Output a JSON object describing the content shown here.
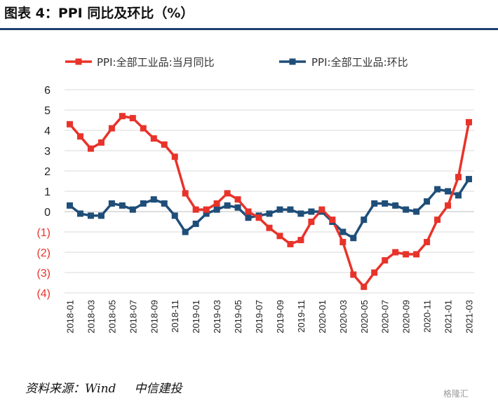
{
  "header": {
    "title": "图表 4：PPI 同比及环比（%）"
  },
  "footer": {
    "source_label": "资料来源：Wind",
    "source_org": "中信建投",
    "watermark": "格隆汇"
  },
  "colors": {
    "yoy": "#e8332a",
    "mom": "#1f4e79",
    "negative_tick": "#e8332a",
    "positive_tick": "#222222",
    "grid": "#d9d9d9"
  },
  "chart_data": {
    "type": "line",
    "title": "PPI 同比及环比（%）",
    "xlabel": "",
    "ylabel": "",
    "ylim": [
      -4,
      6
    ],
    "yticks": [
      {
        "value": 6,
        "label": "6"
      },
      {
        "value": 5,
        "label": "5"
      },
      {
        "value": 4,
        "label": "4"
      },
      {
        "value": 3,
        "label": "3"
      },
      {
        "value": 2,
        "label": "2"
      },
      {
        "value": 1,
        "label": "1"
      },
      {
        "value": 0,
        "label": "0"
      },
      {
        "value": -1,
        "label": "(1)"
      },
      {
        "value": -2,
        "label": "(2)"
      },
      {
        "value": -3,
        "label": "(3)"
      },
      {
        "value": -4,
        "label": "(4)"
      }
    ],
    "x": [
      "2018-01",
      "2018-02",
      "2018-03",
      "2018-04",
      "2018-05",
      "2018-06",
      "2018-07",
      "2018-08",
      "2018-09",
      "2018-10",
      "2018-11",
      "2018-12",
      "2019-01",
      "2019-02",
      "2019-03",
      "2019-04",
      "2019-05",
      "2019-06",
      "2019-07",
      "2019-08",
      "2019-09",
      "2019-10",
      "2019-11",
      "2019-12",
      "2020-01",
      "2020-02",
      "2020-03",
      "2020-04",
      "2020-05",
      "2020-06",
      "2020-07",
      "2020-08",
      "2020-09",
      "2020-10",
      "2020-11",
      "2020-12",
      "2021-01",
      "2021-02",
      "2021-03"
    ],
    "x_tick_labels": [
      "2018-01",
      "2018-03",
      "2018-05",
      "2018-07",
      "2018-09",
      "2018-11",
      "2019-01",
      "2019-03",
      "2019-05",
      "2019-07",
      "2019-09",
      "2019-11",
      "2020-01",
      "2020-03",
      "2020-05",
      "2020-07",
      "2020-09",
      "2020-11",
      "2021-01",
      "2021-03"
    ],
    "legend_position": "top",
    "series": [
      {
        "name": "PPI:全部工业品:当月同比",
        "values": [
          4.3,
          3.7,
          3.1,
          3.4,
          4.1,
          4.7,
          4.6,
          4.1,
          3.6,
          3.3,
          2.7,
          0.9,
          0.1,
          0.1,
          0.4,
          0.9,
          0.6,
          0.0,
          -0.3,
          -0.8,
          -1.2,
          -1.6,
          -1.4,
          -0.5,
          0.1,
          -0.4,
          -1.5,
          -3.1,
          -3.7,
          -3.0,
          -2.4,
          -2.0,
          -2.1,
          -2.1,
          -1.5,
          -0.4,
          0.3,
          1.7,
          4.4
        ]
      },
      {
        "name": "PPI:全部工业品:环比",
        "values": [
          0.3,
          -0.1,
          -0.2,
          -0.2,
          0.4,
          0.3,
          0.1,
          0.4,
          0.6,
          0.4,
          -0.2,
          -1.0,
          -0.6,
          -0.1,
          0.1,
          0.3,
          0.2,
          -0.3,
          -0.2,
          -0.1,
          0.1,
          0.1,
          -0.1,
          0.0,
          0.0,
          -0.5,
          -1.0,
          -1.3,
          -0.4,
          0.4,
          0.4,
          0.3,
          0.1,
          0.0,
          0.5,
          1.1,
          1.0,
          0.8,
          1.6
        ]
      }
    ]
  }
}
